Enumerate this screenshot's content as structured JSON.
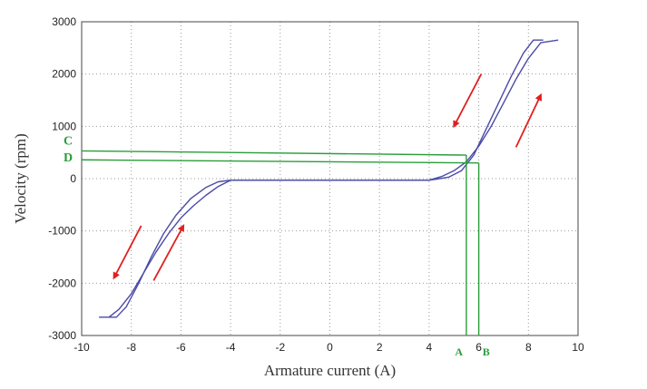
{
  "chart_data": {
    "type": "line",
    "xlabel": "Armature current (A)",
    "ylabel": "Velocity (rpm)",
    "xlim": [
      -10,
      10
    ],
    "ylim": [
      -3000,
      3000
    ],
    "xticks": [
      -10,
      -8,
      -6,
      -4,
      -2,
      0,
      2,
      4,
      6,
      8,
      10
    ],
    "yticks": [
      -3000,
      -2000,
      -1000,
      0,
      1000,
      2000,
      3000
    ],
    "grid": true,
    "series": [
      {
        "color": "#4a4aa8",
        "x": [
          -4,
          -4.5,
          -5,
          -5.5,
          -6,
          -6.5,
          -7,
          -7.5,
          -8,
          -8.5,
          -8.9
        ],
        "y": [
          -30,
          -150,
          -320,
          -520,
          -750,
          -1050,
          -1400,
          -1800,
          -2200,
          -2500,
          -2650
        ]
      },
      {
        "color": "#4a4aa8",
        "x": [
          -9.3,
          -8.6,
          -8.2,
          -7.7,
          -7.2,
          -6.7,
          -6.2,
          -5.6,
          -5,
          -4.5,
          -4,
          0,
          4
        ],
        "y": [
          -2650,
          -2650,
          -2450,
          -2000,
          -1500,
          -1050,
          -700,
          -380,
          -170,
          -60,
          -30,
          -30,
          -30
        ]
      },
      {
        "color": "#4a4aa8",
        "x": [
          4,
          4.5,
          5,
          5.5,
          6,
          6.5,
          7,
          7.5,
          8,
          8.5,
          9.2
        ],
        "y": [
          -30,
          40,
          150,
          320,
          620,
          1000,
          1450,
          1900,
          2300,
          2600,
          2650
        ]
      },
      {
        "color": "#4a4aa8",
        "x": [
          8.6,
          8.2,
          7.8,
          7.3,
          6.8,
          6.3,
          5.8,
          5.3,
          4.8,
          4.3,
          4,
          0,
          -4
        ],
        "y": [
          2650,
          2650,
          2400,
          1950,
          1450,
          950,
          450,
          150,
          30,
          -10,
          -30,
          -30,
          -30
        ]
      }
    ],
    "guide_color": "#2a9d3a",
    "guide_lines": [
      {
        "x": [
          -10,
          5.5
        ],
        "y": [
          530,
          450
        ]
      },
      {
        "x": [
          -10,
          6.0
        ],
        "y": [
          360,
          300
        ]
      },
      {
        "x": [
          5.5,
          5.5
        ],
        "y": [
          450,
          -3000
        ]
      },
      {
        "x": [
          6.0,
          6.0
        ],
        "y": [
          300,
          -3000
        ]
      }
    ],
    "markers": [
      {
        "label": "C",
        "position": "left-outside",
        "y": 740
      },
      {
        "label": "D",
        "position": "left-outside",
        "y": 420
      },
      {
        "label": "A",
        "position": "below-axis",
        "x": 5.2
      },
      {
        "label": "B",
        "position": "below-axis",
        "x": 6.3
      }
    ],
    "arrow_color": "#e02020",
    "arrows": [
      {
        "from": [
          6.1,
          2000
        ],
        "to": [
          5.0,
          1000
        ]
      },
      {
        "from": [
          7.5,
          600
        ],
        "to": [
          8.5,
          1600
        ]
      },
      {
        "from": [
          -7.6,
          -900
        ],
        "to": [
          -8.7,
          -1900
        ]
      },
      {
        "from": [
          -7.1,
          -1950
        ],
        "to": [
          -5.9,
          -900
        ]
      }
    ]
  }
}
